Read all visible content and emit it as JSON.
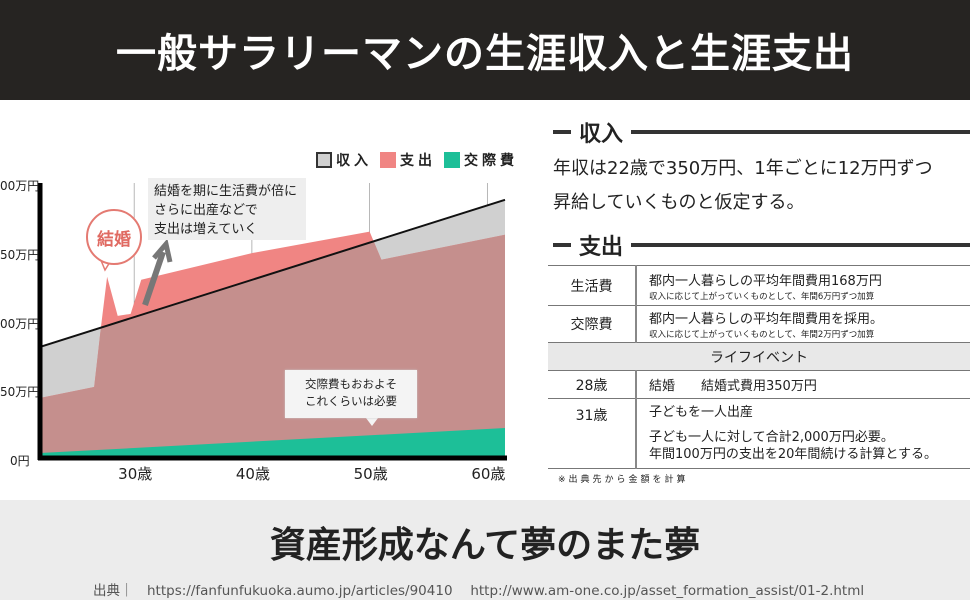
{
  "header": {
    "title": "一般サラリーマンの生涯収入と生涯支出"
  },
  "legend": [
    {
      "label": "収入",
      "color": "#d0d0d0"
    },
    {
      "label": "支出",
      "color": "#f08583"
    },
    {
      "label": "交際費",
      "color": "#1dbf98"
    }
  ],
  "colors": {
    "overlap": "#c58f8d",
    "grid": "#999999"
  },
  "chart_data": {
    "type": "area",
    "title": "",
    "xlabel": "",
    "ylabel": "",
    "xlim": [
      22,
      61.5
    ],
    "ylim": [
      0,
      1000
    ],
    "x_ticks": [
      {
        "v": 30,
        "label": "30歳"
      },
      {
        "v": 40,
        "label": "40歳"
      },
      {
        "v": 50,
        "label": "50歳"
      },
      {
        "v": 60,
        "label": "60歳"
      }
    ],
    "y_ticks": [
      {
        "v": 0,
        "label": "0円"
      },
      {
        "v": 250,
        "label": "50万円"
      },
      {
        "v": 500,
        "label": "00万円"
      },
      {
        "v": 750,
        "label": "50万円"
      },
      {
        "v": 1000,
        "label": "00万円"
      }
    ],
    "series": [
      {
        "name": "収入",
        "points": [
          [
            22,
            404
          ],
          [
            61.5,
            939
          ]
        ]
      },
      {
        "name": "支出",
        "points": [
          [
            22,
            218
          ],
          [
            26.6,
            258
          ],
          [
            27.2,
            484
          ],
          [
            27.7,
            659
          ],
          [
            28.6,
            517
          ],
          [
            29.7,
            524
          ],
          [
            30.6,
            648
          ],
          [
            40,
            745
          ],
          [
            50,
            823
          ],
          [
            51,
            721
          ],
          [
            61.5,
            812
          ]
        ]
      },
      {
        "name": "交際費",
        "points": [
          [
            22,
            18
          ],
          [
            61.5,
            109
          ]
        ]
      }
    ],
    "annotations": [
      "結婚",
      "結婚を期に生活費が倍に",
      "さらに出産などで",
      "支出は増えていく",
      "交際費もおおよそ",
      "これくらいは必要"
    ]
  },
  "income": {
    "heading": "収入",
    "text": [
      "年収は22歳で350万円、1年ごとに12万円ずつ",
      "昇給していくものと仮定する。"
    ]
  },
  "expense": {
    "heading": "支出",
    "rows": [
      {
        "k": "生活費",
        "v": "都内一人暮らしの平均年間費用168万円",
        "s": "収入に応じて上がっていくものとして、年間6万円ずつ加算"
      },
      {
        "k": "交際費",
        "v": "都内一人暮らしの平均年間費用を採用。",
        "s": "収入に応じて上がっていくものとして、年間2万円ずつ加算"
      }
    ],
    "life_event_header": "ライフイベント",
    "events": [
      {
        "k": "28歳",
        "v": "結婚　　結婚式費用350万円"
      },
      {
        "k": "31歳",
        "v": "子どもを一人出産",
        "d1": "子ども一人に対して合計2,000万円必要。",
        "d2": "年間100万円の支出を20年間続ける計算とする。"
      }
    ],
    "footnote": "※出典先から金額を計算"
  },
  "footer": {
    "title": "資産形成なんて夢のまた夢",
    "cite": "出典｜　https://fanfunfukuoka.aumo.jp/articles/90410　 http://www.am-one.co.jp/asset_formation_assist/01-2.html"
  }
}
